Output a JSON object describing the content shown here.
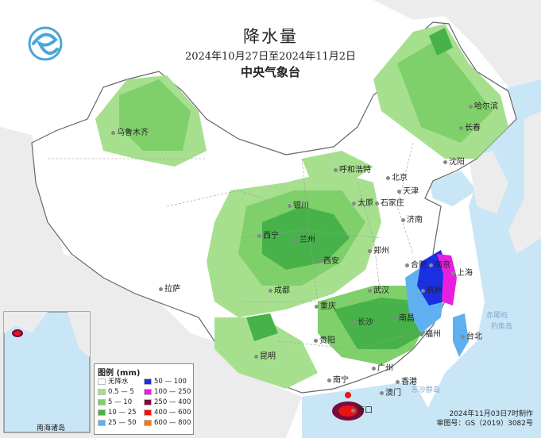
{
  "header": {
    "title": "降水量",
    "date_range": "2024年10月27日至2024年11月2日",
    "agency": "中央气象台"
  },
  "legend": {
    "title": "图例 (mm)",
    "items": [
      {
        "label": "无降水",
        "color": "#ffffff"
      },
      {
        "label": "0.5 — 5",
        "color": "#a6e08e"
      },
      {
        "label": "5 — 10",
        "color": "#7fd06a"
      },
      {
        "label": "10 — 25",
        "color": "#48b24a"
      },
      {
        "label": "25 — 50",
        "color": "#5fb0f0"
      },
      {
        "label": "50 — 100",
        "color": "#1a2fe0"
      },
      {
        "label": "100 — 250",
        "color": "#e81ee0"
      },
      {
        "label": "250 — 400",
        "color": "#7a0a3c"
      },
      {
        "label": "400 — 600",
        "color": "#e81414"
      },
      {
        "label": "600 — 800",
        "color": "#f07a14"
      }
    ]
  },
  "cities": [
    "乌鲁木齐",
    "哈尔滨",
    "长春",
    "沈阳",
    "呼和浩特",
    "北京",
    "天津",
    "银川",
    "太原",
    "石家庄",
    "济南",
    "西宁",
    "兰州",
    "郑州",
    "西安",
    "合肥",
    "上海",
    "南京",
    "拉萨",
    "成都",
    "武汉",
    "杭州",
    "重庆",
    "长沙",
    "南昌",
    "贵阳",
    "福州",
    "台北",
    "昆明",
    "南宁",
    "广州",
    "香港",
    "澳门",
    "海口"
  ],
  "seas": [
    "钓鱼岛",
    "赤尾屿",
    "东沙群岛"
  ],
  "inset_label": "南海诸岛",
  "footer": {
    "made": "2024年11月03日7时制作",
    "approval": "审图号：GS（2019）3082号"
  },
  "colors": {
    "sea": "#c9e6f7",
    "land_outside": "#ececec",
    "china_dry": "#ffffff",
    "border": "#666666"
  },
  "icons": {
    "logo": "cma-logo-icon"
  }
}
